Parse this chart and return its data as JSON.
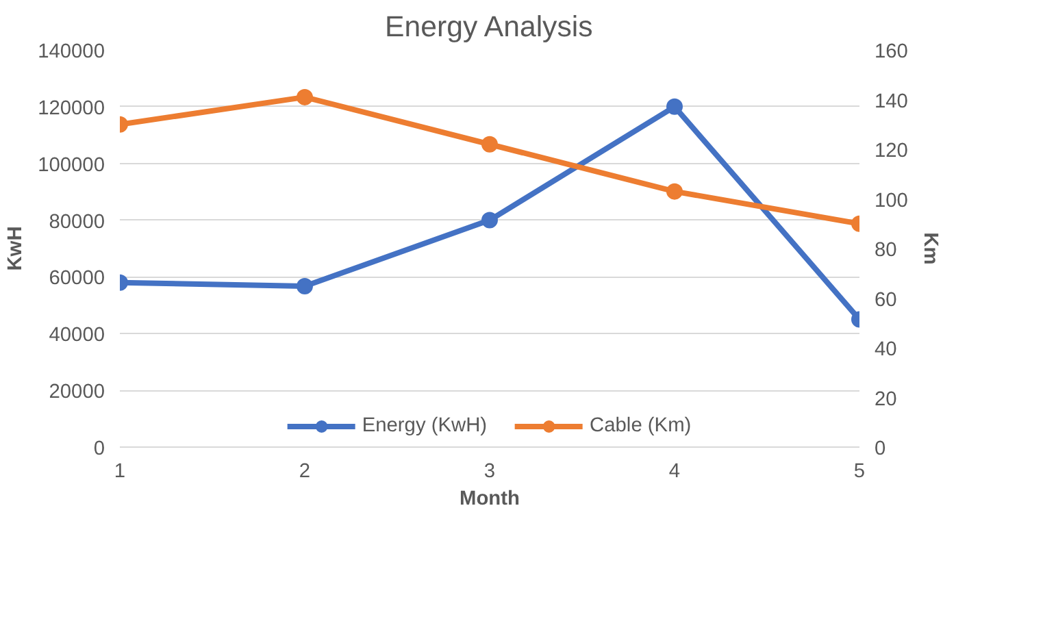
{
  "chart_data": {
    "type": "line",
    "title": "Energy Analysis",
    "xlabel": "Month",
    "ylabel": "KwH",
    "y2label": "Km",
    "x": [
      1,
      2,
      3,
      4,
      5
    ],
    "series": [
      {
        "name": "Energy (KwH)",
        "color": "#4472c4",
        "values": [
          58000,
          56700,
          80000,
          120000,
          45000
        ]
      },
      {
        "name": "Cable (Km)",
        "color": "#ed7d31",
        "values": [
          130,
          141,
          122,
          103,
          90
        ],
        "axis": "y2"
      }
    ],
    "xlim": [
      1,
      5
    ],
    "xticks": [
      1,
      2,
      3,
      4,
      5
    ],
    "ylim": [
      0,
      140000
    ],
    "yticks": [
      0,
      20000,
      40000,
      60000,
      80000,
      100000,
      120000,
      140000
    ],
    "y2lim": [
      0,
      160
    ],
    "y2ticks": [
      0,
      20,
      40,
      60,
      80,
      100,
      120,
      140,
      160
    ],
    "grid": "y",
    "legend": "bottom",
    "marker": "circle",
    "line_style": "solid"
  }
}
